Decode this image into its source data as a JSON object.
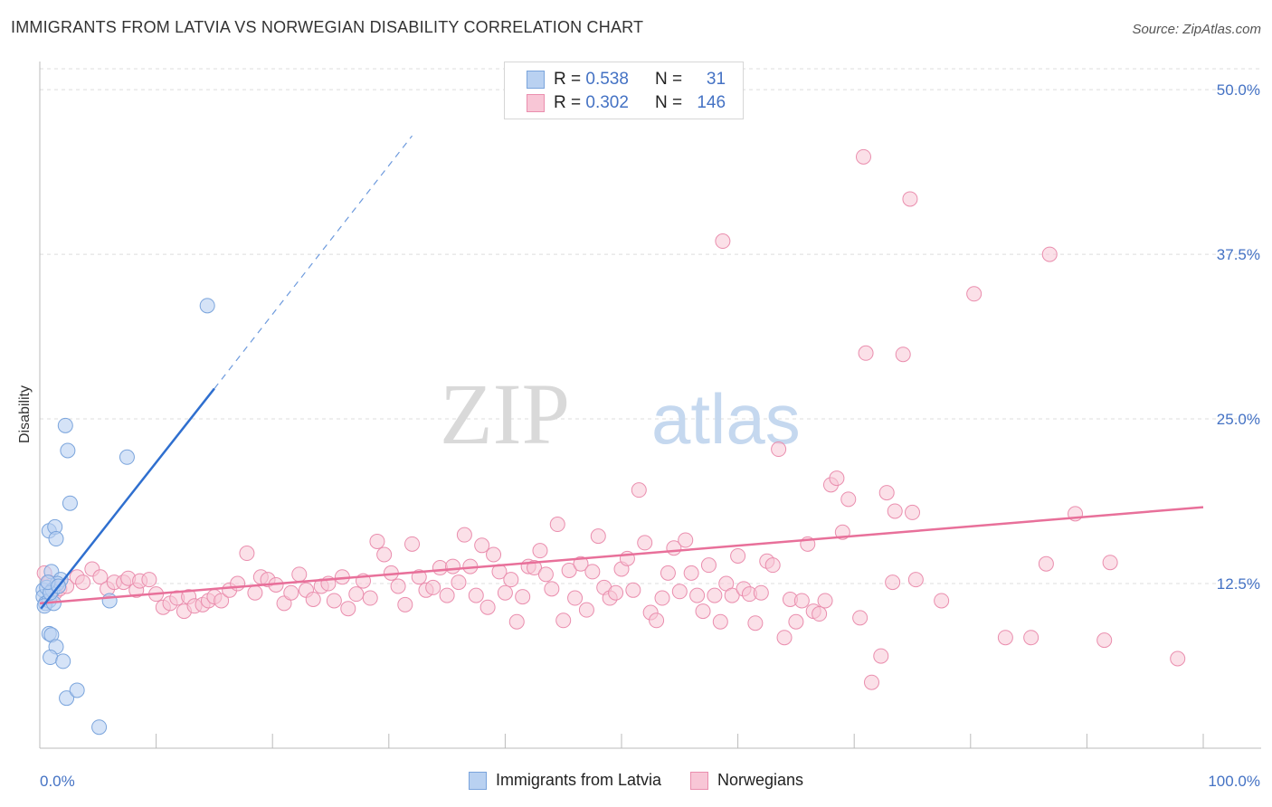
{
  "header": {
    "title": "IMMIGRANTS FROM LATVIA VS NORWEGIAN DISABILITY CORRELATION CHART",
    "source": "Source: ZipAtlas.com"
  },
  "watermark": {
    "zip": "ZIP",
    "atlas": "atlas"
  },
  "legend_top": [
    {
      "r_label": "R =",
      "r_value": "0.538",
      "n_label": "N =",
      "n_value": "31"
    },
    {
      "r_label": "R =",
      "r_value": "0.302",
      "n_label": "N =",
      "n_value": "146"
    }
  ],
  "legend_bottom": [
    {
      "label": "Immigrants from Latvia"
    },
    {
      "label": "Norwegians"
    }
  ],
  "colors": {
    "latvia_fill": "#b9d1f1",
    "latvia_stroke": "#7aa4dc",
    "latvia_line": "#2f6fcf",
    "norw_fill": "#f8c6d6",
    "norw_stroke": "#ea8eae",
    "norw_line": "#e8709a",
    "axis_text": "#4472c4",
    "grid": "#dddddd"
  },
  "chart_data": {
    "type": "scatter",
    "title": "IMMIGRANTS FROM LATVIA VS NORWEGIAN DISABILITY CORRELATION CHART",
    "xlabel": "",
    "ylabel": "Disability",
    "xlim": [
      0,
      100
    ],
    "ylim": [
      0,
      52
    ],
    "x_tick_labels": [
      "0.0%",
      "100.0%"
    ],
    "y_ticks": [
      12.5,
      25.0,
      37.5,
      50.0
    ],
    "y_tick_labels": [
      "12.5%",
      "25.0%",
      "37.5%",
      "50.0%"
    ],
    "grid": true,
    "series": [
      {
        "name": "Immigrants from Latvia",
        "r": 0.538,
        "n": 31,
        "points": [
          [
            0.3,
            12.0
          ],
          [
            0.3,
            11.5
          ],
          [
            0.5,
            11.0
          ],
          [
            0.6,
            12.2
          ],
          [
            0.8,
            11.2
          ],
          [
            1.0,
            13.4
          ],
          [
            1.1,
            12.0
          ],
          [
            0.8,
            16.5
          ],
          [
            1.3,
            16.8
          ],
          [
            1.4,
            15.9
          ],
          [
            0.8,
            8.7
          ],
          [
            1.0,
            8.6
          ],
          [
            1.4,
            7.7
          ],
          [
            0.9,
            6.9
          ],
          [
            2.0,
            6.6
          ],
          [
            2.2,
            24.5
          ],
          [
            2.4,
            22.6
          ],
          [
            2.6,
            18.6
          ],
          [
            2.3,
            3.8
          ],
          [
            3.2,
            4.4
          ],
          [
            5.1,
            1.6
          ],
          [
            7.5,
            22.1
          ],
          [
            14.4,
            33.6
          ],
          [
            6.0,
            11.2
          ],
          [
            1.8,
            12.8
          ],
          [
            1.5,
            12.5
          ],
          [
            0.4,
            10.8
          ],
          [
            1.2,
            11.0
          ],
          [
            0.9,
            11.8
          ],
          [
            0.7,
            12.6
          ],
          [
            1.6,
            12.3
          ]
        ],
        "trend": {
          "x": [
            0.1,
            15.0
          ],
          "y": [
            10.6,
            27.3
          ],
          "dashed_to": [
            32.0,
            46.5
          ]
        }
      },
      {
        "name": "Norwegians",
        "r": 0.302,
        "n": 146,
        "points": [
          [
            0.4,
            13.3
          ],
          [
            0.8,
            12.6
          ],
          [
            1.3,
            11.8
          ],
          [
            1.7,
            12.1
          ],
          [
            2.3,
            12.3
          ],
          [
            3.2,
            13.0
          ],
          [
            3.7,
            12.6
          ],
          [
            4.5,
            13.6
          ],
          [
            5.2,
            13.0
          ],
          [
            5.8,
            12.1
          ],
          [
            6.4,
            12.6
          ],
          [
            7.2,
            12.6
          ],
          [
            7.6,
            12.9
          ],
          [
            8.3,
            12.0
          ],
          [
            8.6,
            12.7
          ],
          [
            9.4,
            12.8
          ],
          [
            10.0,
            11.7
          ],
          [
            10.6,
            10.7
          ],
          [
            11.2,
            11.0
          ],
          [
            11.8,
            11.4
          ],
          [
            12.4,
            10.4
          ],
          [
            12.8,
            11.5
          ],
          [
            13.3,
            10.8
          ],
          [
            14.0,
            10.9
          ],
          [
            14.5,
            11.2
          ],
          [
            15.0,
            11.5
          ],
          [
            15.6,
            11.2
          ],
          [
            16.3,
            12.0
          ],
          [
            17.0,
            12.5
          ],
          [
            17.8,
            14.8
          ],
          [
            18.5,
            11.8
          ],
          [
            19.0,
            13.0
          ],
          [
            19.6,
            12.8
          ],
          [
            20.3,
            12.4
          ],
          [
            21.0,
            11.0
          ],
          [
            21.6,
            11.8
          ],
          [
            22.3,
            13.2
          ],
          [
            22.9,
            12.0
          ],
          [
            23.5,
            11.3
          ],
          [
            24.2,
            12.3
          ],
          [
            24.8,
            12.5
          ],
          [
            25.3,
            11.2
          ],
          [
            26.0,
            13.0
          ],
          [
            26.5,
            10.6
          ],
          [
            27.2,
            11.7
          ],
          [
            27.8,
            12.7
          ],
          [
            28.4,
            11.4
          ],
          [
            29.0,
            15.7
          ],
          [
            29.6,
            14.7
          ],
          [
            30.2,
            13.3
          ],
          [
            30.8,
            12.3
          ],
          [
            31.4,
            10.9
          ],
          [
            32.0,
            15.5
          ],
          [
            32.6,
            13.0
          ],
          [
            33.2,
            12.0
          ],
          [
            33.8,
            12.2
          ],
          [
            34.4,
            13.7
          ],
          [
            35.0,
            11.6
          ],
          [
            35.5,
            13.8
          ],
          [
            36.0,
            12.6
          ],
          [
            36.5,
            16.2
          ],
          [
            37.0,
            13.8
          ],
          [
            37.5,
            11.6
          ],
          [
            38.0,
            15.4
          ],
          [
            38.5,
            10.7
          ],
          [
            39.0,
            14.7
          ],
          [
            39.5,
            13.4
          ],
          [
            40.0,
            11.8
          ],
          [
            40.5,
            12.8
          ],
          [
            41.0,
            9.6
          ],
          [
            41.5,
            11.5
          ],
          [
            42.0,
            13.8
          ],
          [
            42.5,
            13.7
          ],
          [
            43.0,
            15.0
          ],
          [
            43.5,
            13.2
          ],
          [
            44.0,
            12.1
          ],
          [
            44.5,
            17.0
          ],
          [
            45.0,
            9.7
          ],
          [
            45.5,
            13.5
          ],
          [
            46.0,
            11.4
          ],
          [
            46.5,
            14.0
          ],
          [
            47.0,
            10.5
          ],
          [
            47.5,
            13.4
          ],
          [
            48.0,
            16.1
          ],
          [
            48.5,
            12.2
          ],
          [
            49.0,
            11.4
          ],
          [
            49.5,
            11.8
          ],
          [
            50.0,
            13.6
          ],
          [
            50.5,
            14.4
          ],
          [
            51.0,
            12.0
          ],
          [
            51.5,
            19.6
          ],
          [
            52.0,
            15.6
          ],
          [
            52.5,
            10.3
          ],
          [
            53.0,
            9.7
          ],
          [
            53.5,
            11.4
          ],
          [
            54.0,
            13.3
          ],
          [
            54.5,
            15.2
          ],
          [
            55.0,
            11.9
          ],
          [
            55.5,
            15.8
          ],
          [
            56.0,
            13.3
          ],
          [
            56.5,
            11.6
          ],
          [
            57.0,
            10.4
          ],
          [
            57.5,
            13.9
          ],
          [
            58.0,
            11.6
          ],
          [
            58.5,
            9.6
          ],
          [
            59.0,
            12.5
          ],
          [
            59.5,
            11.6
          ],
          [
            60.0,
            14.6
          ],
          [
            60.5,
            12.1
          ],
          [
            61.0,
            11.7
          ],
          [
            61.5,
            9.5
          ],
          [
            62.0,
            11.8
          ],
          [
            62.5,
            14.2
          ],
          [
            63.0,
            13.9
          ],
          [
            63.5,
            22.7
          ],
          [
            64.0,
            8.4
          ],
          [
            64.5,
            11.3
          ],
          [
            65.0,
            9.6
          ],
          [
            65.5,
            11.2
          ],
          [
            66.0,
            15.5
          ],
          [
            66.5,
            10.4
          ],
          [
            67.0,
            10.2
          ],
          [
            67.5,
            11.2
          ],
          [
            68.0,
            20.0
          ],
          [
            68.5,
            20.5
          ],
          [
            69.0,
            16.4
          ],
          [
            69.5,
            18.9
          ],
          [
            70.5,
            9.9
          ],
          [
            71.0,
            30.0
          ],
          [
            71.5,
            5.0
          ],
          [
            72.3,
            7.0
          ],
          [
            73.3,
            12.6
          ],
          [
            74.2,
            29.9
          ],
          [
            75.0,
            17.9
          ],
          [
            75.3,
            12.8
          ],
          [
            77.5,
            11.2
          ],
          [
            72.8,
            19.4
          ],
          [
            74.8,
            41.7
          ],
          [
            73.5,
            18.0
          ],
          [
            58.7,
            38.5
          ],
          [
            80.3,
            34.5
          ],
          [
            86.8,
            37.5
          ],
          [
            70.8,
            44.9
          ],
          [
            85.2,
            8.4
          ],
          [
            86.5,
            14.0
          ],
          [
            89.0,
            17.8
          ],
          [
            83.0,
            8.4
          ],
          [
            91.5,
            8.2
          ],
          [
            92.0,
            14.1
          ],
          [
            97.8,
            6.8
          ]
        ],
        "trend": {
          "x": [
            0.0,
            100.0
          ],
          "y": [
            11.0,
            18.3
          ]
        }
      }
    ]
  }
}
